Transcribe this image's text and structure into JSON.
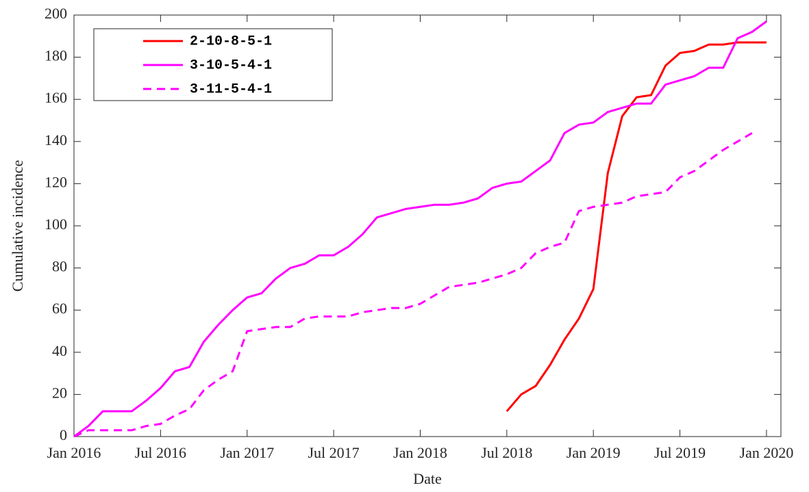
{
  "chart_data": {
    "type": "line",
    "xlabel": "Date",
    "ylabel": "Cumulative incidence",
    "x": [
      "2016-01",
      "2016-02",
      "2016-03",
      "2016-04",
      "2016-05",
      "2016-06",
      "2016-07",
      "2016-08",
      "2016-09",
      "2016-10",
      "2016-11",
      "2016-12",
      "2017-01",
      "2017-02",
      "2017-03",
      "2017-04",
      "2017-05",
      "2017-06",
      "2017-07",
      "2017-08",
      "2017-09",
      "2017-10",
      "2017-11",
      "2017-12",
      "2018-01",
      "2018-02",
      "2018-03",
      "2018-04",
      "2018-05",
      "2018-06",
      "2018-07",
      "2018-08",
      "2018-09",
      "2018-10",
      "2018-11",
      "2018-12",
      "2019-01",
      "2019-02",
      "2019-03",
      "2019-04",
      "2019-05",
      "2019-06",
      "2019-07",
      "2019-08",
      "2019-09",
      "2019-10",
      "2019-11",
      "2019-12",
      "2020-01"
    ],
    "series": [
      {
        "name": "2-10-8-5-1",
        "color": "#ff0000",
        "dash": false,
        "values": [
          null,
          null,
          null,
          null,
          null,
          null,
          null,
          null,
          null,
          null,
          null,
          null,
          null,
          null,
          null,
          null,
          null,
          null,
          null,
          null,
          null,
          null,
          null,
          null,
          null,
          null,
          null,
          null,
          null,
          null,
          12,
          20,
          24,
          34,
          46,
          56,
          70,
          125,
          152,
          161,
          162,
          176,
          182,
          183,
          186,
          186,
          187,
          187,
          187
        ]
      },
      {
        "name": "3-10-5-4-1",
        "color": "#ff00ff",
        "dash": false,
        "values": [
          0,
          5,
          12,
          12,
          12,
          17,
          23,
          31,
          33,
          45,
          53,
          60,
          66,
          68,
          75,
          80,
          82,
          86,
          86,
          90,
          96,
          104,
          106,
          108,
          109,
          110,
          110,
          111,
          113,
          118,
          120,
          121,
          126,
          131,
          144,
          148,
          149,
          154,
          156,
          158,
          158,
          167,
          169,
          171,
          175,
          175,
          189,
          192,
          197
        ]
      },
      {
        "name": "3-11-5-4-1",
        "color": "#ff00ff",
        "dash": true,
        "values": [
          0,
          3,
          3,
          3,
          3,
          5,
          6,
          10,
          13,
          22,
          27,
          31,
          50,
          51,
          52,
          52,
          56,
          57,
          57,
          57,
          59,
          60,
          61,
          61,
          63,
          67,
          71,
          72,
          73,
          75,
          77,
          80,
          87,
          90,
          92,
          107,
          109,
          110,
          111,
          114,
          115,
          116,
          123,
          126,
          131,
          136,
          140,
          144,
          null
        ]
      }
    ],
    "xlim": [
      "2016-01",
      "2020-02"
    ],
    "xticks": [
      {
        "value": "2016-01",
        "label": "Jan 2016"
      },
      {
        "value": "2016-07",
        "label": "Jul 2016"
      },
      {
        "value": "2017-01",
        "label": "Jan 2017"
      },
      {
        "value": "2017-07",
        "label": "Jul 2017"
      },
      {
        "value": "2018-01",
        "label": "Jan 2018"
      },
      {
        "value": "2018-07",
        "label": "Jul 2018"
      },
      {
        "value": "2019-01",
        "label": "Jan 2019"
      },
      {
        "value": "2019-07",
        "label": "Jul 2019"
      },
      {
        "value": "2020-01",
        "label": "Jan 2020"
      }
    ],
    "ylim": [
      0,
      200
    ],
    "yticks": [
      0,
      20,
      40,
      60,
      80,
      100,
      120,
      140,
      160,
      180,
      200
    ],
    "grid": false,
    "legend": "upper left"
  }
}
